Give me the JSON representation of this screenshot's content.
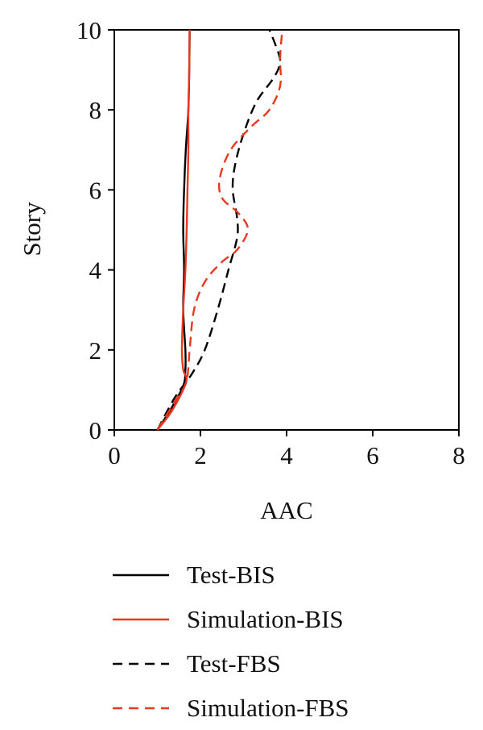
{
  "chart_data": {
    "type": "line",
    "title": "",
    "xlabel": "AAC",
    "ylabel": "Story",
    "xlim": [
      0,
      8
    ],
    "ylim": [
      0,
      10
    ],
    "xticks": [
      "0",
      "2",
      "4",
      "6",
      "8"
    ],
    "yticks": [
      "0",
      "2",
      "4",
      "6",
      "8",
      "10"
    ],
    "grid": false,
    "legend_position": "bottom",
    "series": [
      {
        "name": "Test-BIS",
        "color": "#000000",
        "dash": "solid",
        "points": [
          {
            "x": 1.0,
            "y": 0.0
          },
          {
            "x": 1.3,
            "y": 0.5
          },
          {
            "x": 1.6,
            "y": 1.1
          },
          {
            "x": 1.65,
            "y": 1.5
          },
          {
            "x": 1.65,
            "y": 2.0
          },
          {
            "x": 1.6,
            "y": 3.0
          },
          {
            "x": 1.62,
            "y": 4.0
          },
          {
            "x": 1.6,
            "y": 5.0
          },
          {
            "x": 1.62,
            "y": 6.0
          },
          {
            "x": 1.66,
            "y": 7.0
          },
          {
            "x": 1.72,
            "y": 8.0
          },
          {
            "x": 1.74,
            "y": 9.0
          },
          {
            "x": 1.75,
            "y": 10.0
          }
        ]
      },
      {
        "name": "Simulation-BIS",
        "color": "#e8381f",
        "dash": "solid",
        "points": [
          {
            "x": 1.0,
            "y": 0.0
          },
          {
            "x": 1.35,
            "y": 0.5
          },
          {
            "x": 1.67,
            "y": 1.2
          },
          {
            "x": 1.6,
            "y": 1.5
          },
          {
            "x": 1.57,
            "y": 2.0
          },
          {
            "x": 1.6,
            "y": 3.0
          },
          {
            "x": 1.65,
            "y": 4.0
          },
          {
            "x": 1.68,
            "y": 5.0
          },
          {
            "x": 1.7,
            "y": 6.0
          },
          {
            "x": 1.72,
            "y": 7.0
          },
          {
            "x": 1.72,
            "y": 8.0
          },
          {
            "x": 1.74,
            "y": 9.0
          },
          {
            "x": 1.75,
            "y": 10.0
          }
        ]
      },
      {
        "name": "Test-FBS",
        "color": "#000000",
        "dash": "dashed",
        "points": [
          {
            "x": 1.0,
            "y": 0.0
          },
          {
            "x": 1.4,
            "y": 0.8
          },
          {
            "x": 1.8,
            "y": 1.4
          },
          {
            "x": 2.1,
            "y": 2.0
          },
          {
            "x": 2.4,
            "y": 3.0
          },
          {
            "x": 2.65,
            "y": 4.0
          },
          {
            "x": 2.85,
            "y": 4.8
          },
          {
            "x": 2.85,
            "y": 5.3
          },
          {
            "x": 2.75,
            "y": 6.0
          },
          {
            "x": 2.8,
            "y": 6.6
          },
          {
            "x": 3.0,
            "y": 7.4
          },
          {
            "x": 3.3,
            "y": 8.2
          },
          {
            "x": 3.7,
            "y": 8.8
          },
          {
            "x": 3.85,
            "y": 9.2
          },
          {
            "x": 3.75,
            "y": 9.6
          },
          {
            "x": 3.6,
            "y": 10.0
          }
        ]
      },
      {
        "name": "Simulation-FBS",
        "color": "#e8381f",
        "dash": "dashed",
        "points": [
          {
            "x": 1.0,
            "y": 0.0
          },
          {
            "x": 1.4,
            "y": 0.7
          },
          {
            "x": 1.67,
            "y": 1.2
          },
          {
            "x": 1.75,
            "y": 2.0
          },
          {
            "x": 1.85,
            "y": 3.0
          },
          {
            "x": 2.1,
            "y": 3.7
          },
          {
            "x": 2.5,
            "y": 4.2
          },
          {
            "x": 2.85,
            "y": 4.5
          },
          {
            "x": 3.1,
            "y": 5.0
          },
          {
            "x": 2.9,
            "y": 5.4
          },
          {
            "x": 2.5,
            "y": 5.8
          },
          {
            "x": 2.45,
            "y": 6.3
          },
          {
            "x": 2.7,
            "y": 7.0
          },
          {
            "x": 3.2,
            "y": 7.6
          },
          {
            "x": 3.6,
            "y": 8.0
          },
          {
            "x": 3.85,
            "y": 8.6
          },
          {
            "x": 3.85,
            "y": 9.3
          },
          {
            "x": 3.9,
            "y": 10.0
          }
        ]
      }
    ]
  }
}
